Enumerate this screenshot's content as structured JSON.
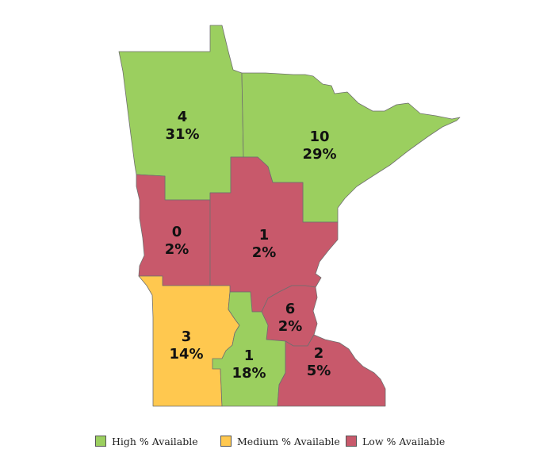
{
  "colors": {
    "high": "#9bcf5f",
    "medium": "#ffc84f",
    "low": "#c8596b",
    "border": "#6f6f6f"
  },
  "regions": [
    {
      "id": "northwest",
      "count": "4",
      "percent": "31%",
      "level": "high"
    },
    {
      "id": "northeast",
      "count": "10",
      "percent": "29%",
      "level": "high"
    },
    {
      "id": "west-central",
      "count": "0",
      "percent": "2%",
      "level": "low"
    },
    {
      "id": "central",
      "count": "1",
      "percent": "2%",
      "level": "low"
    },
    {
      "id": "metro",
      "count": "6",
      "percent": "2%",
      "level": "low"
    },
    {
      "id": "southwest",
      "count": "3",
      "percent": "14%",
      "level": "medium"
    },
    {
      "id": "south-central",
      "count": "1",
      "percent": "18%",
      "level": "high"
    },
    {
      "id": "southeast",
      "count": "2",
      "percent": "5%",
      "level": "low"
    }
  ],
  "legend": [
    {
      "label": "High % Available",
      "level": "high"
    },
    {
      "label": "Medium % Available",
      "level": "medium"
    },
    {
      "label": "Low % Available",
      "level": "low"
    }
  ]
}
